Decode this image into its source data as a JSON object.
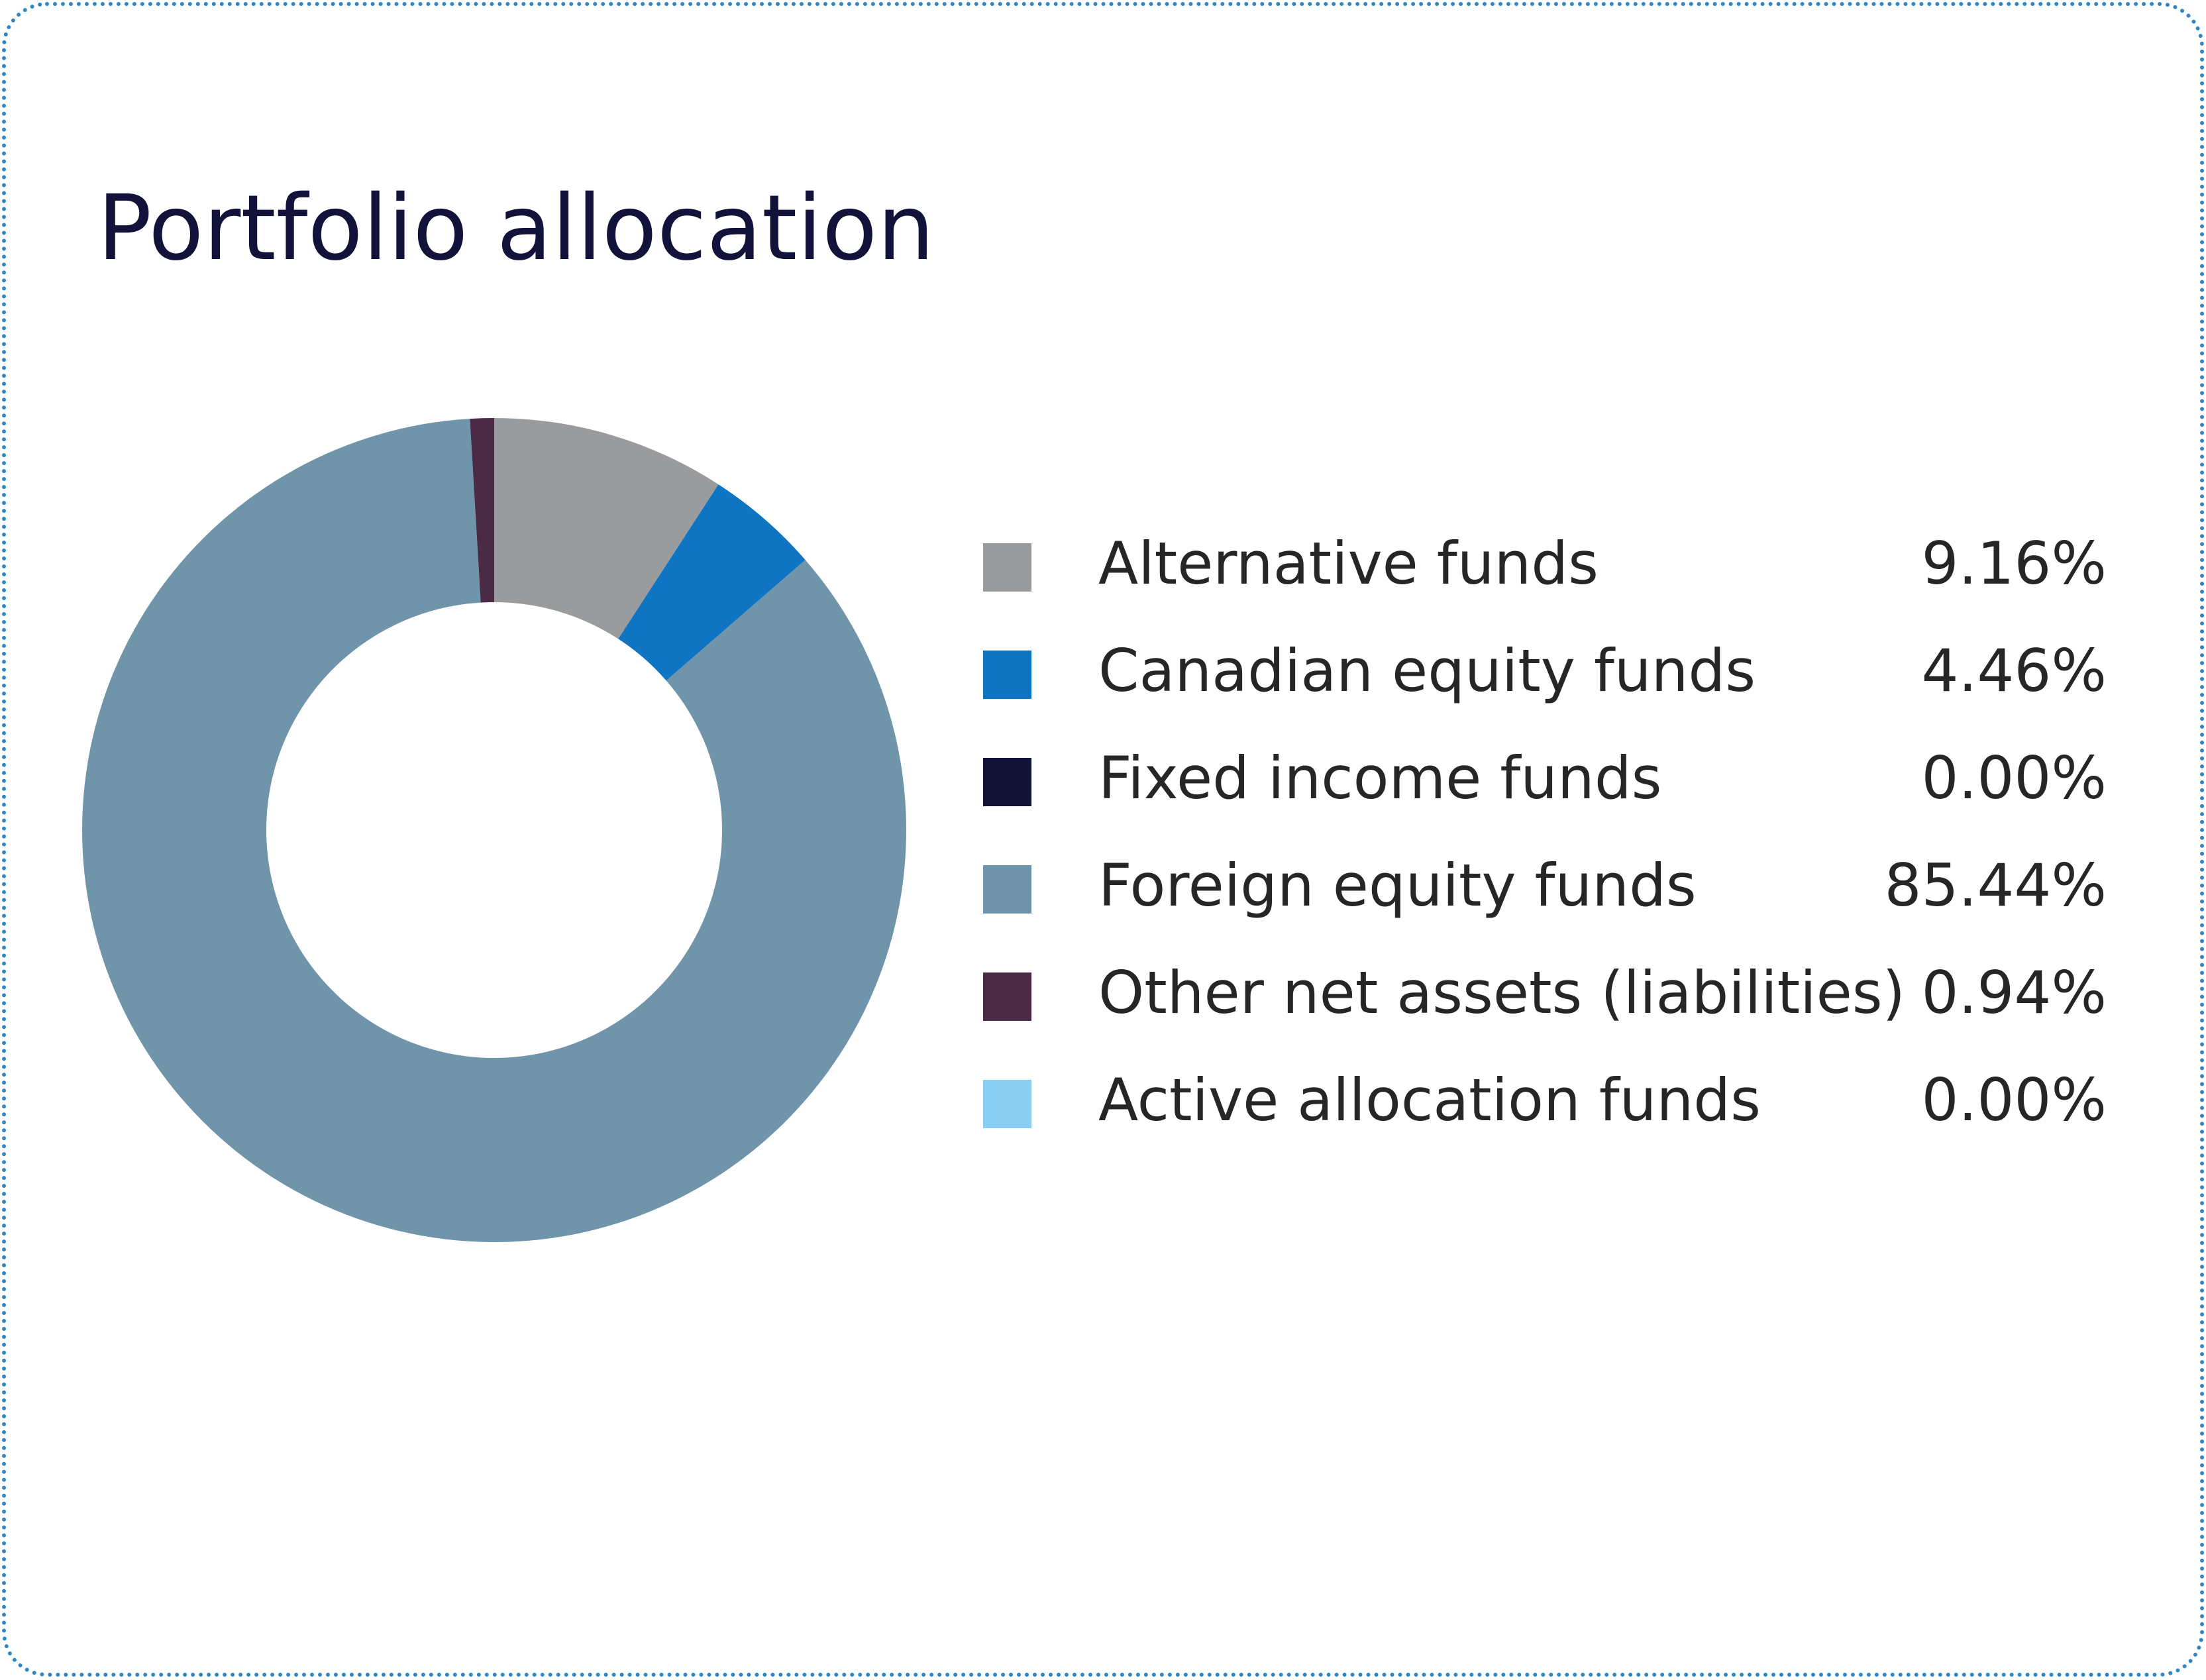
{
  "chart_data": {
    "type": "pie",
    "title": "Portfolio allocation",
    "slices": [
      {
        "label": "Alternative funds",
        "value": 9.16,
        "display": "9.16%",
        "color": "#9a9b9c"
      },
      {
        "label": "Canadian equity funds",
        "value": 4.46,
        "display": "4.46%",
        "color": "#0f74c2"
      },
      {
        "label": "Fixed income funds",
        "value": 0.0,
        "display": "0.00%",
        "color": "#111133"
      },
      {
        "label": "Foreign equity funds",
        "value": 85.44,
        "display": "85.44%",
        "color": "#7095ab"
      },
      {
        "label": "Other net assets (liabilities)",
        "value": 0.94,
        "display": "0.94%",
        "color": "#4a2a45"
      },
      {
        "label": "Active allocation funds",
        "value": 0.0,
        "display": "0.00%",
        "color": "#89cdf1"
      }
    ],
    "legend_position": "right"
  }
}
